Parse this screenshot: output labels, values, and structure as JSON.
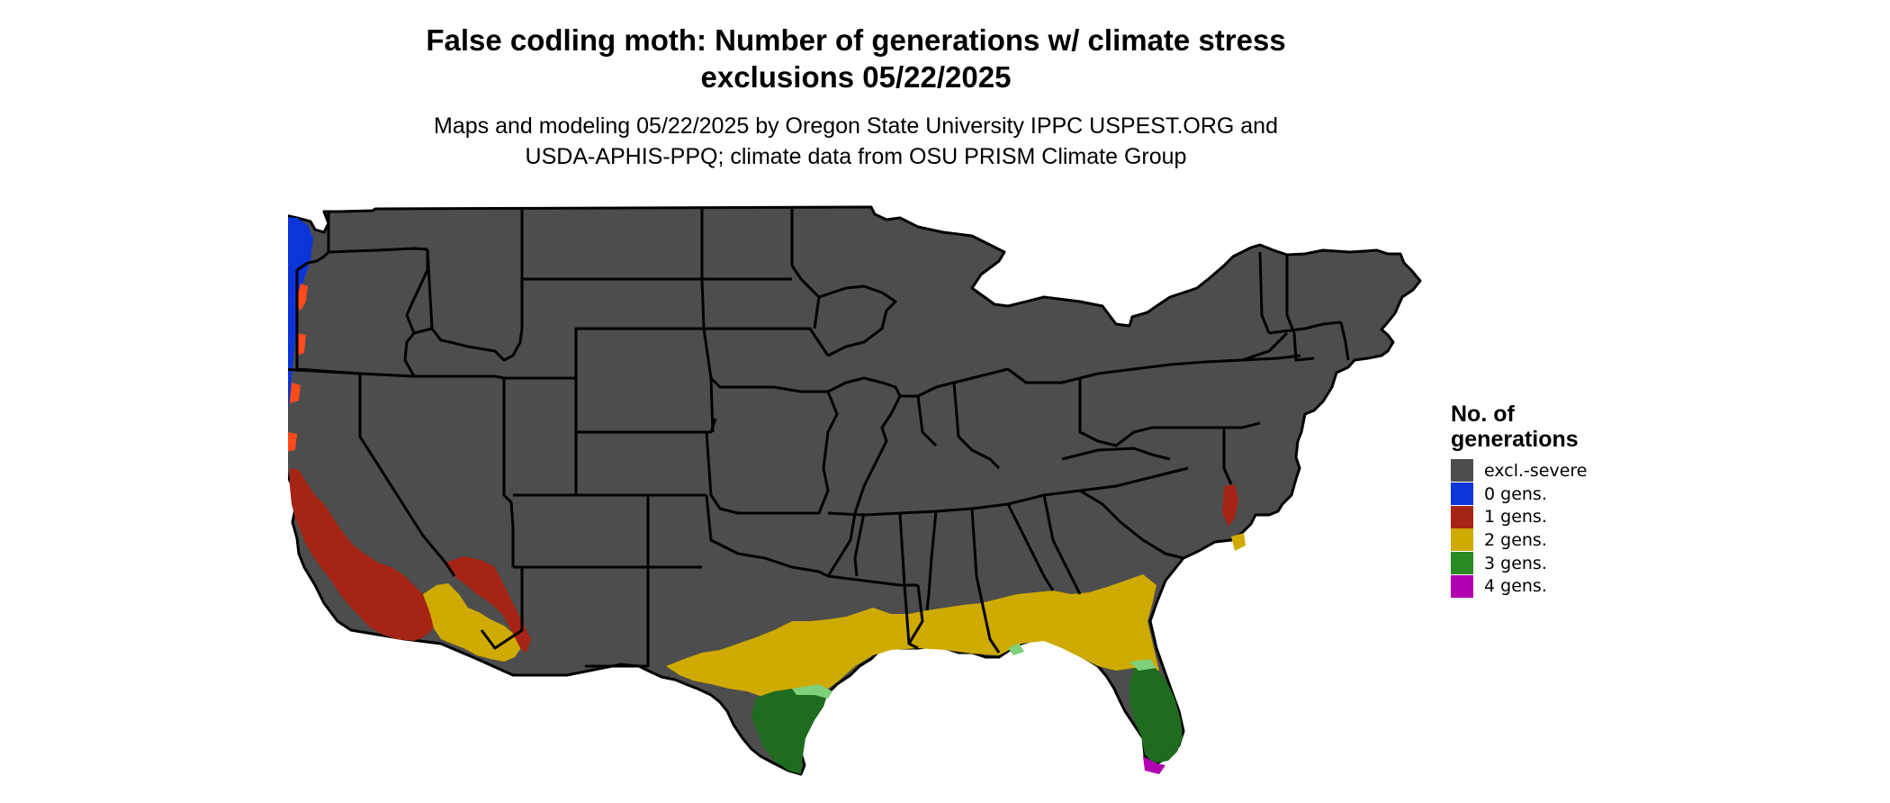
{
  "title": {
    "line1": "False codling moth: Number of generations w/ climate stress",
    "line2": "exclusions 05/22/2025"
  },
  "subtitle": {
    "line1": "Maps and modeling 05/22/2025 by Oregon State University IPPC USPEST.ORG and",
    "line2": "USDA-APHIS-PPQ; climate data from OSU PRISM Climate Group"
  },
  "legend": {
    "title_line1": "No. of",
    "title_line2": "generations",
    "items": [
      {
        "label": "excl.-severe",
        "color": "#4d4d4d"
      },
      {
        "label": "0 gens.",
        "color": "#0b35d9"
      },
      {
        "label": "1 gens.",
        "color": "#a52414"
      },
      {
        "label": "2 gens.",
        "color": "#cfaa00"
      },
      {
        "label": "3 gens.",
        "color": "#2a8a24"
      },
      {
        "label": "4 gens.",
        "color": "#b000b0"
      }
    ]
  },
  "map_colors": {
    "land": "#4d4d4d",
    "border": "#000000",
    "zero_gens": "#0b35d9",
    "one_gens": "#a52414",
    "one_gens_bright": "#ff4a1c",
    "two_gens": "#cfaa00",
    "three_gens": "#1f6b1f",
    "three_gens_light": "#7fd07a",
    "four_gens": "#b000b0"
  }
}
